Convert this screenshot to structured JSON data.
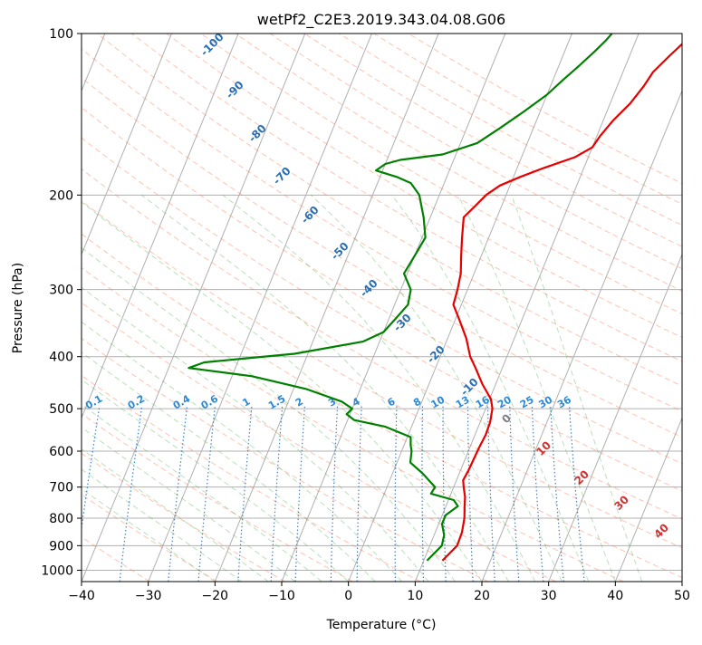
{
  "chart_data": {
    "type": "line",
    "subtype": "skew-T log-P diagram",
    "title": "wetPf2_C2E3.2019.343.04.08.G06",
    "xlabel": "Temperature (°C)",
    "ylabel": "Pressure (hPa)",
    "xlim": [
      -40,
      50
    ],
    "ylim": [
      1050,
      100
    ],
    "y_scale": "log",
    "x_ticks": [
      "−40",
      "−30",
      "−20",
      "−10",
      "0",
      "10",
      "20",
      "30",
      "40",
      "50"
    ],
    "y_ticks": [
      "100",
      "200",
      "300",
      "400",
      "500",
      "600",
      "700",
      "800",
      "900",
      "1000"
    ],
    "grid": true,
    "series": [
      {
        "key": "temperature",
        "color": "#e60000",
        "points": [
          [
            12.8,
            960
          ],
          [
            14.1,
            900
          ],
          [
            14.0,
            850
          ],
          [
            13.5,
            800
          ],
          [
            12.8,
            760
          ],
          [
            12.3,
            730
          ],
          [
            11.5,
            700
          ],
          [
            11.0,
            680
          ],
          [
            11.2,
            650
          ],
          [
            11.3,
            620
          ],
          [
            11.4,
            590
          ],
          [
            11.6,
            560
          ],
          [
            11.5,
            530
          ],
          [
            11.0,
            500
          ],
          [
            10.2,
            480
          ],
          [
            8.0,
            450
          ],
          [
            6.0,
            420
          ],
          [
            4.5,
            400
          ],
          [
            2.8,
            370
          ],
          [
            0.5,
            340
          ],
          [
            -1.2,
            320
          ],
          [
            -1.5,
            300
          ],
          [
            -2.0,
            280
          ],
          [
            -3.0,
            260
          ],
          [
            -4.0,
            240
          ],
          [
            -5.0,
            220
          ],
          [
            -4.0,
            210
          ],
          [
            -3.0,
            200
          ],
          [
            -1.5,
            192
          ],
          [
            1.0,
            185
          ],
          [
            4.0,
            178
          ],
          [
            8.0,
            170
          ],
          [
            10.0,
            163
          ],
          [
            10.5,
            155
          ],
          [
            11.5,
            145
          ],
          [
            13.0,
            135
          ],
          [
            14.0,
            125
          ],
          [
            14.5,
            118
          ],
          [
            16.0,
            110
          ],
          [
            17.5,
            103
          ],
          [
            18.0,
            100
          ]
        ]
      },
      {
        "key": "dewpoint",
        "color": "#008000",
        "points": [
          [
            10.5,
            960
          ],
          [
            11.8,
            900
          ],
          [
            11.5,
            860
          ],
          [
            10.5,
            820
          ],
          [
            10.5,
            790
          ],
          [
            11.8,
            760
          ],
          [
            10.8,
            740
          ],
          [
            7.0,
            720
          ],
          [
            7.2,
            700
          ],
          [
            4.5,
            660
          ],
          [
            2.0,
            630
          ],
          [
            1.5,
            600
          ],
          [
            1.0,
            585
          ],
          [
            0.5,
            565
          ],
          [
            -4.0,
            540
          ],
          [
            -9.0,
            525
          ],
          [
            -10.5,
            512
          ],
          [
            -10.0,
            500
          ],
          [
            -12.0,
            485
          ],
          [
            -18.0,
            460
          ],
          [
            -27.0,
            435
          ],
          [
            -37.0,
            420
          ],
          [
            -35.0,
            410
          ],
          [
            -22.0,
            395
          ],
          [
            -12.5,
            375
          ],
          [
            -10.0,
            360
          ],
          [
            -9.0,
            340
          ],
          [
            -8.0,
            320
          ],
          [
            -8.5,
            300
          ],
          [
            -10.5,
            280
          ],
          [
            -10.0,
            260
          ],
          [
            -9.5,
            240
          ],
          [
            -11.0,
            220
          ],
          [
            -13.0,
            200
          ],
          [
            -15.0,
            190
          ],
          [
            -17.5,
            185
          ],
          [
            -21.0,
            180
          ],
          [
            -20.0,
            175
          ],
          [
            -18.0,
            172
          ],
          [
            -12.0,
            168
          ],
          [
            -7.5,
            160
          ],
          [
            -5.0,
            150
          ],
          [
            -2.5,
            140
          ],
          [
            0.0,
            130
          ],
          [
            1.5,
            122
          ],
          [
            3.0,
            115
          ],
          [
            4.5,
            108
          ],
          [
            5.5,
            103
          ],
          [
            6.0,
            100
          ]
        ]
      }
    ],
    "dry_adiabat_labels": [
      "-100",
      "-90",
      "-80",
      "-70",
      "-60",
      "-50",
      "-40",
      "-30",
      "-20",
      "-10"
    ],
    "mixing_ratio_labels": [
      "0.1",
      "0.2",
      "0.4",
      "0.6",
      "1",
      "1.5",
      "2",
      "3",
      "4",
      "6",
      "8",
      "10",
      "13",
      "16",
      "20",
      "25",
      "30",
      "36"
    ],
    "moist_adiabat_labels": [
      "0",
      "10",
      "20",
      "30",
      "40"
    ]
  }
}
